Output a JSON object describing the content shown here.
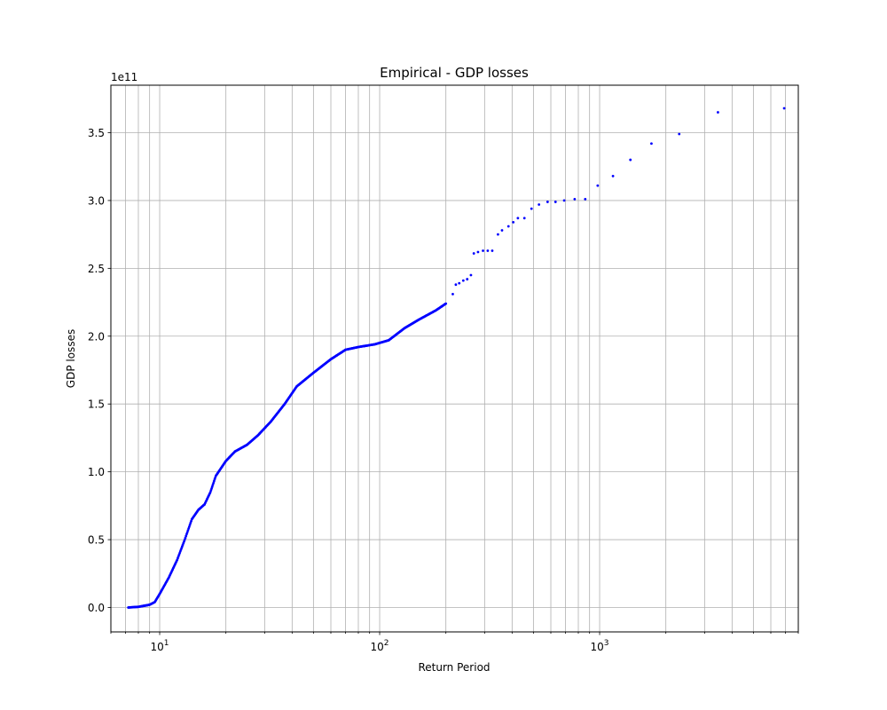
{
  "chart_data": {
    "type": "scatter",
    "title": "Empirical - GDP losses",
    "xlabel": "Return Period",
    "ylabel": "GDP losses",
    "y_offset_label": "1e11",
    "x_scale": "log",
    "x_range": [
      6.0,
      8000
    ],
    "y_range": [
      -0.18,
      3.85
    ],
    "y_scale_factor": 100000000000,
    "grid": true,
    "marker_color": "#0000ff",
    "x_major_ticks": [
      10,
      100,
      1000
    ],
    "x_tick_labels": [
      {
        "base": "10",
        "exp": "1"
      },
      {
        "base": "10",
        "exp": "2"
      },
      {
        "base": "10",
        "exp": "3"
      }
    ],
    "y_ticks": [
      0.0,
      0.5,
      1.0,
      1.5,
      2.0,
      2.5,
      3.0,
      3.5
    ],
    "y_tick_labels": [
      "0.0",
      "0.5",
      "1.0",
      "1.5",
      "2.0",
      "2.5",
      "3.0",
      "3.5"
    ],
    "curve_anchors": [
      [
        7.2,
        0.0
      ],
      [
        8.0,
        0.005
      ],
      [
        9.0,
        0.02
      ],
      [
        9.5,
        0.04
      ],
      [
        10.0,
        0.1
      ],
      [
        11.0,
        0.22
      ],
      [
        12.0,
        0.35
      ],
      [
        13.0,
        0.5
      ],
      [
        14.0,
        0.65
      ],
      [
        15.0,
        0.72
      ],
      [
        16.0,
        0.76
      ],
      [
        17.0,
        0.85
      ],
      [
        18.0,
        0.97
      ],
      [
        20.0,
        1.08
      ],
      [
        22.0,
        1.15
      ],
      [
        25.0,
        1.2
      ],
      [
        28.0,
        1.27
      ],
      [
        32.0,
        1.37
      ],
      [
        37.0,
        1.5
      ],
      [
        42.0,
        1.63
      ],
      [
        50.0,
        1.73
      ],
      [
        60.0,
        1.83
      ],
      [
        70.0,
        1.9
      ],
      [
        80.0,
        1.92
      ],
      [
        95.0,
        1.94
      ],
      [
        110.0,
        1.97
      ],
      [
        130.0,
        2.06
      ],
      [
        150.0,
        2.12
      ],
      [
        180.0,
        2.19
      ],
      [
        200.0,
        2.24
      ]
    ],
    "sparse_points": [
      [
        215,
        2.31
      ],
      [
        222,
        2.38
      ],
      [
        230,
        2.39
      ],
      [
        240,
        2.41
      ],
      [
        250,
        2.42
      ],
      [
        260,
        2.45
      ],
      [
        268,
        2.61
      ],
      [
        280,
        2.62
      ],
      [
        295,
        2.63
      ],
      [
        310,
        2.63
      ],
      [
        325,
        2.63
      ],
      [
        345,
        2.75
      ],
      [
        360,
        2.78
      ],
      [
        385,
        2.81
      ],
      [
        405,
        2.84
      ],
      [
        425,
        2.87
      ],
      [
        455,
        2.87
      ],
      [
        490,
        2.94
      ],
      [
        530,
        2.97
      ],
      [
        580,
        2.99
      ],
      [
        630,
        2.99
      ],
      [
        690,
        3.0
      ],
      [
        770,
        3.01
      ],
      [
        860,
        3.01
      ],
      [
        980,
        3.11
      ],
      [
        1150,
        3.18
      ],
      [
        1380,
        3.3
      ],
      [
        1720,
        3.42
      ],
      [
        2300,
        3.49
      ],
      [
        3450,
        3.65
      ],
      [
        6900,
        3.68
      ]
    ]
  }
}
